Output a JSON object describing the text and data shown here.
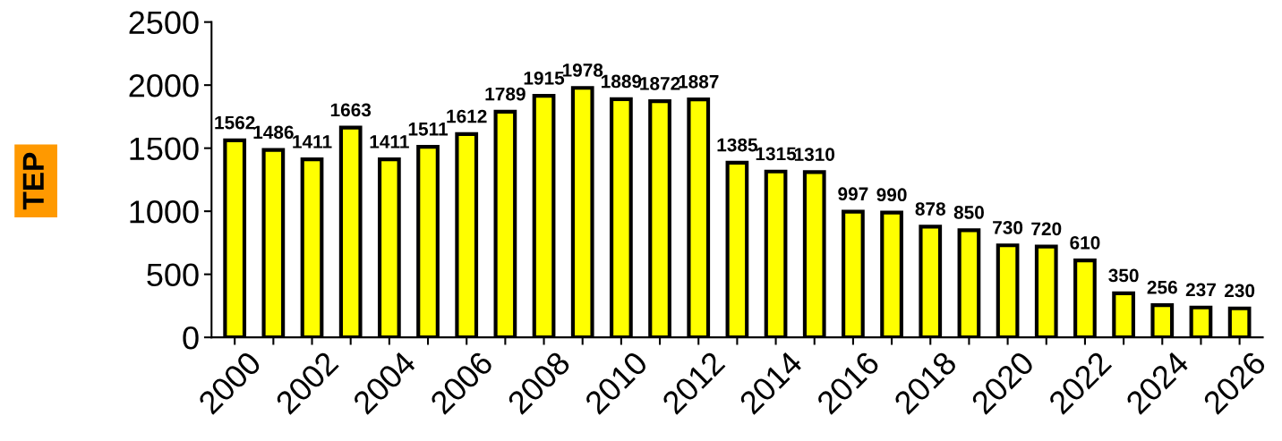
{
  "chart_data": {
    "type": "bar",
    "ylabel": "TEP",
    "categories": [
      "2000",
      null,
      "2002",
      null,
      "2004",
      null,
      "2006",
      null,
      "2008",
      null,
      "2010",
      null,
      "2012",
      null,
      "2014",
      null,
      "2016",
      null,
      "2018",
      null,
      "2020",
      null,
      "2022",
      null,
      "2024",
      null,
      "2026"
    ],
    "values": [
      1562,
      1486,
      1411,
      1663,
      1411,
      1511,
      1612,
      1789,
      1915,
      1978,
      1889,
      1872,
      1887,
      1385,
      1315,
      1310,
      997,
      990,
      878,
      850,
      730,
      720,
      610,
      350,
      256,
      237,
      230
    ],
    "color": "#ffff00",
    "ylim": [
      0,
      2500
    ],
    "yticks": [
      0,
      500,
      1000,
      1500,
      2000,
      2500
    ],
    "data_labels": true,
    "grid": false
  }
}
